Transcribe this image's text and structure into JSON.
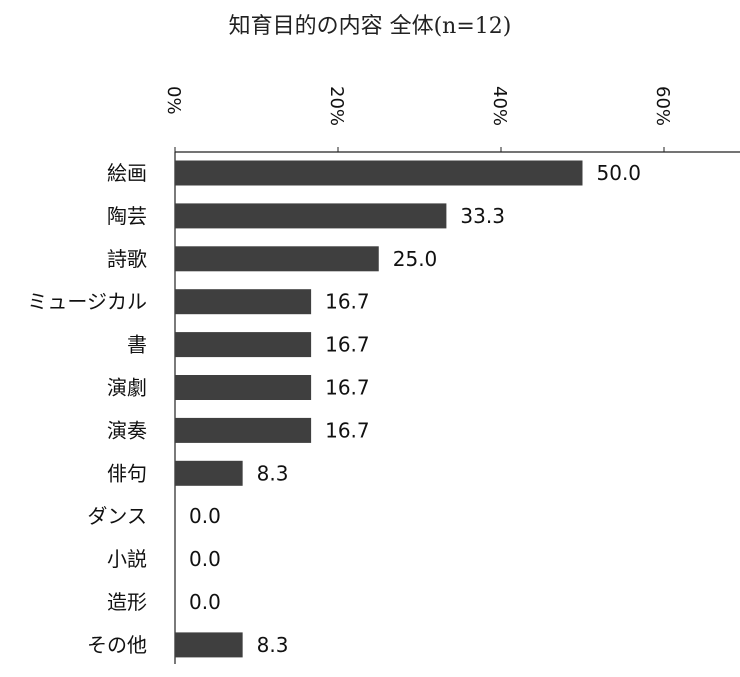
{
  "chart_data": {
    "type": "bar",
    "orientation": "horizontal",
    "title": "知育目的の内容 全体(n=12)",
    "categories": [
      "絵画",
      "陶芸",
      "詩歌",
      "ミュージカル",
      "書",
      "演劇",
      "演奏",
      "俳句",
      "ダンス",
      "小説",
      "造形",
      "その他"
    ],
    "values": [
      50.0,
      33.3,
      25.0,
      16.7,
      16.7,
      16.7,
      16.7,
      8.3,
      0.0,
      0.0,
      0.0,
      8.3
    ],
    "value_labels": [
      "50.0",
      "33.3",
      "25.0",
      "16.7",
      "16.7",
      "16.7",
      "16.7",
      "8.3",
      "0.0",
      "0.0",
      "0.0",
      "8.3"
    ],
    "x_ticks": [
      0,
      20,
      40,
      60
    ],
    "x_tick_labels": [
      "0%",
      "20%",
      "40%",
      "60%"
    ],
    "xlim": [
      0,
      70
    ],
    "axis_position": "top",
    "grid": false,
    "legend": "none",
    "bar_color": "#3f3f3f"
  }
}
